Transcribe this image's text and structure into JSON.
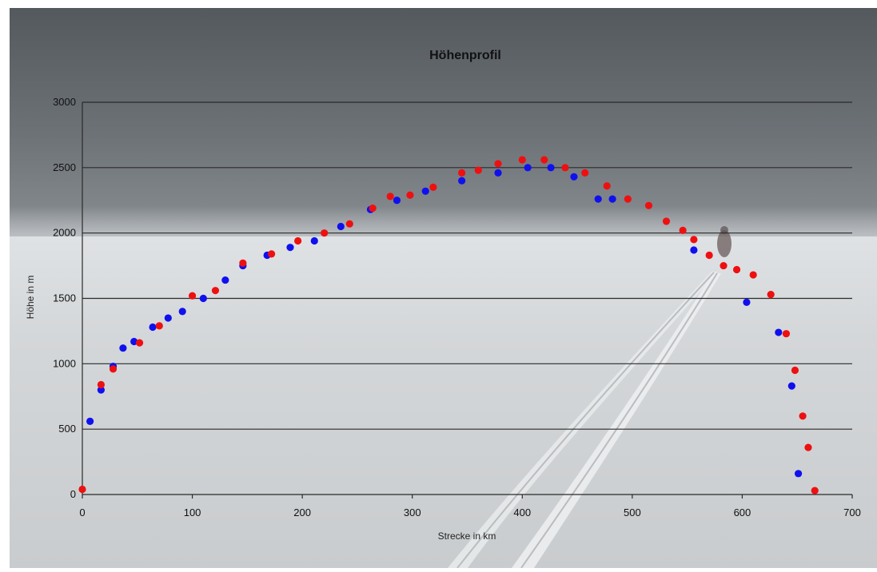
{
  "chart_data": {
    "type": "scatter",
    "title": "Höhenprofil",
    "xlabel": "Strecke in km",
    "ylabel": "Höhe in m",
    "xlim": [
      0,
      700
    ],
    "ylim": [
      0,
      3000
    ],
    "xticks": [
      0,
      100,
      200,
      300,
      400,
      500,
      600,
      700
    ],
    "yticks": [
      0,
      500,
      1000,
      1500,
      2000,
      2500,
      3000
    ],
    "grid": "horizontal",
    "legend": "none",
    "series": [
      {
        "color": "#1010ee",
        "points": [
          [
            7,
            560
          ],
          [
            17,
            800
          ],
          [
            28,
            980
          ],
          [
            37,
            1120
          ],
          [
            47,
            1170
          ],
          [
            64,
            1280
          ],
          [
            78,
            1350
          ],
          [
            91,
            1400
          ],
          [
            110,
            1500
          ],
          [
            130,
            1640
          ],
          [
            146,
            1750
          ],
          [
            168,
            1830
          ],
          [
            189,
            1890
          ],
          [
            211,
            1940
          ],
          [
            235,
            2050
          ],
          [
            262,
            2180
          ],
          [
            286,
            2250
          ],
          [
            312,
            2320
          ],
          [
            345,
            2400
          ],
          [
            378,
            2460
          ],
          [
            405,
            2500
          ],
          [
            426,
            2500
          ],
          [
            447,
            2430
          ],
          [
            469,
            2260
          ],
          [
            482,
            2260
          ],
          [
            556,
            1870
          ],
          [
            604,
            1470
          ],
          [
            633,
            1240
          ],
          [
            645,
            830
          ],
          [
            651,
            160
          ]
        ]
      },
      {
        "color": "#ee1010",
        "points": [
          [
            0,
            40
          ],
          [
            17,
            840
          ],
          [
            28,
            960
          ],
          [
            52,
            1160
          ],
          [
            70,
            1290
          ],
          [
            100,
            1520
          ],
          [
            121,
            1560
          ],
          [
            146,
            1770
          ],
          [
            172,
            1840
          ],
          [
            196,
            1940
          ],
          [
            220,
            2000
          ],
          [
            243,
            2070
          ],
          [
            264,
            2190
          ],
          [
            280,
            2280
          ],
          [
            298,
            2290
          ],
          [
            319,
            2350
          ],
          [
            345,
            2460
          ],
          [
            360,
            2480
          ],
          [
            378,
            2530
          ],
          [
            400,
            2560
          ],
          [
            420,
            2560
          ],
          [
            439,
            2500
          ],
          [
            457,
            2460
          ],
          [
            477,
            2360
          ],
          [
            496,
            2260
          ],
          [
            515,
            2210
          ],
          [
            531,
            2090
          ],
          [
            546,
            2020
          ],
          [
            556,
            1950
          ],
          [
            570,
            1830
          ],
          [
            583,
            1750
          ],
          [
            595,
            1720
          ],
          [
            610,
            1680
          ],
          [
            626,
            1530
          ],
          [
            640,
            1230
          ],
          [
            648,
            950
          ],
          [
            655,
            600
          ],
          [
            660,
            360
          ],
          [
            666,
            30
          ]
        ]
      }
    ]
  }
}
